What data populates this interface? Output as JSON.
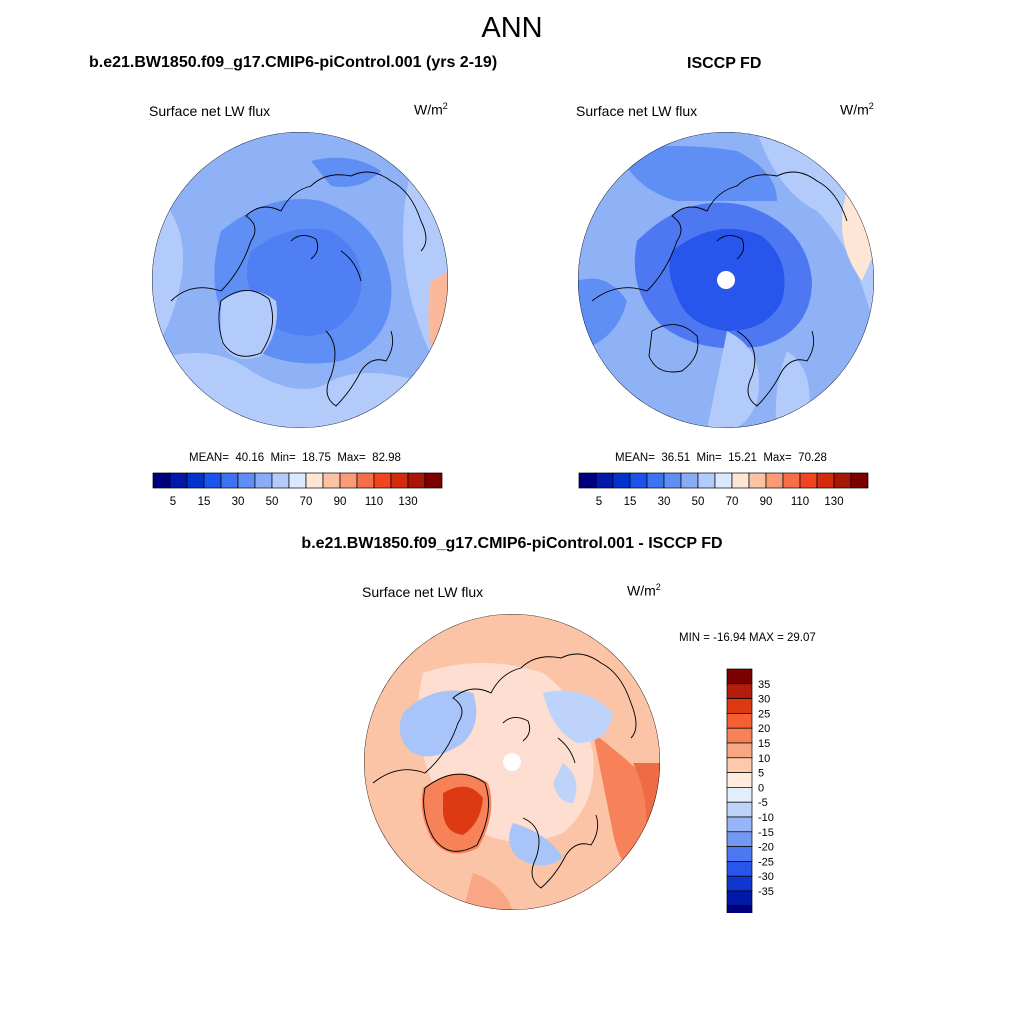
{
  "main_title": "ANN",
  "panels": [
    {
      "title": "b.e21.BW1850.f09_g17.CMIP6-piControl.001 (yrs 2-19)",
      "variable": "Surface net LW flux",
      "units_base": "W/m",
      "units_exp": "2",
      "mean_label": "MEAN=",
      "mean": "40.16",
      "min_label": "Min=",
      "min": "18.75",
      "max_label": "Max=",
      "max": "82.98",
      "projection": "north-polar-stereographic",
      "pole_missing": false
    },
    {
      "title": "ISCCP FD",
      "variable": "Surface net LW flux",
      "units_base": "W/m",
      "units_exp": "2",
      "mean_label": "MEAN=",
      "mean": "36.51",
      "min_label": "Min=",
      "min": "15.21",
      "max_label": "Max=",
      "max": "70.28",
      "projection": "north-polar-stereographic",
      "pole_missing": true
    },
    {
      "title": "b.e21.BW1850.f09_g17.CMIP6-piControl.001 - ISCCP FD",
      "variable": "Surface net LW flux",
      "units_base": "W/m",
      "units_exp": "2",
      "range_text": "MIN = -16.94 MAX =  29.07",
      "projection": "north-polar-stereographic",
      "pole_missing": true
    }
  ],
  "colorbar_abs": {
    "orientation": "horizontal",
    "colors": [
      "#00007f",
      "#0019a8",
      "#0033cc",
      "#1a53ee",
      "#3d72f2",
      "#5f8ff5",
      "#89acf7",
      "#b2cbfa",
      "#dce8fd",
      "#fde6d6",
      "#fbc2a3",
      "#f89b76",
      "#f56f48",
      "#f04520",
      "#d42b0d",
      "#a81606",
      "#7c0000"
    ],
    "tick_labels": [
      "5",
      "15",
      "30",
      "50",
      "70",
      "90",
      "110",
      "130"
    ]
  },
  "colorbar_diff": {
    "orientation": "vertical",
    "colors": [
      "#7c0000",
      "#b51d0b",
      "#dd3a13",
      "#f55f33",
      "#f7825a",
      "#f9a684",
      "#fcc9ad",
      "#feebdd",
      "#e3eefc",
      "#bed3fa",
      "#98b6f7",
      "#7398f4",
      "#4d78f1",
      "#2855ec",
      "#0f37cf",
      "#0019a8",
      "#000080"
    ],
    "tick_labels": [
      "35",
      "30",
      "25",
      "20",
      "15",
      "10",
      "5",
      "0",
      "-5",
      "-10",
      "-15",
      "-20",
      "-25",
      "-30",
      "-35"
    ]
  },
  "colors": {
    "abs_ocean": "#8fb2f7",
    "abs_arctic": "#4f7ff2",
    "abs_land_cold": "#a9c4f9",
    "abs_warm": "#f9b89a",
    "diff_base": "#fcc4a6",
    "diff_neg": "#a9c4f9",
    "diff_pos": "#ee6b45"
  }
}
